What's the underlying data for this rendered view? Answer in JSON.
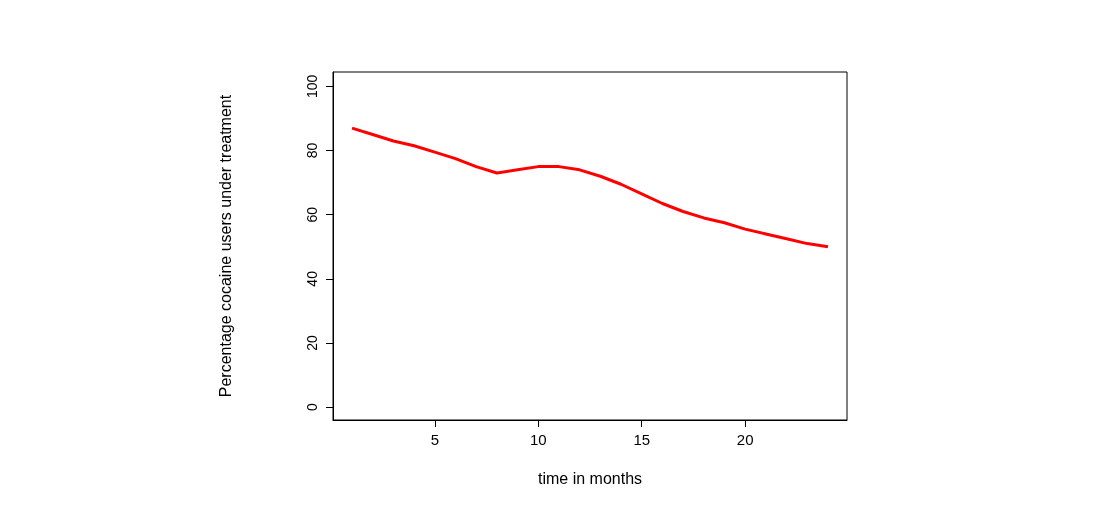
{
  "chart_data": {
    "type": "line",
    "xlabel": "time in months",
    "ylabel": "Percentage cocaine users under treatment",
    "x": [
      1,
      2,
      3,
      4,
      5,
      6,
      7,
      8,
      9,
      10,
      11,
      12,
      13,
      14,
      15,
      16,
      17,
      18,
      19,
      20,
      21,
      22,
      23,
      24
    ],
    "series": [
      {
        "color": "#ff0000",
        "values": [
          87,
          85,
          83,
          81.5,
          79.5,
          77.5,
          75,
          73,
          74,
          75,
          75,
          74,
          72,
          69.5,
          66.5,
          63.5,
          61,
          59,
          57.5,
          55.5,
          54,
          52.5,
          51,
          50
        ]
      }
    ],
    "xlim": [
      0.08,
      24.92
    ],
    "xticks": [
      5,
      10,
      15,
      20
    ],
    "ylim": [
      -4,
      104.5
    ],
    "yticks": [
      0,
      20,
      40,
      60,
      80,
      100
    ],
    "grid": false,
    "marker": "none",
    "line_style": "solid"
  }
}
